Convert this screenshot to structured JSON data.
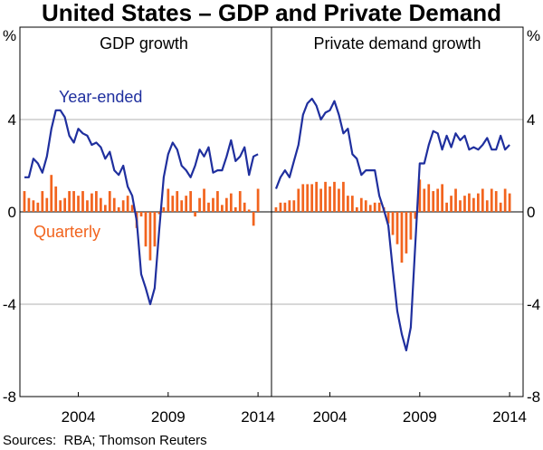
{
  "colors": {
    "year_ended": "#1f2f9e",
    "quarterly": "#f2641e",
    "grid": "#b0b0b0",
    "frame": "#000000"
  },
  "chart_data": {
    "title": "United States – GDP and Private Demand",
    "unit_label": "%",
    "y_ticks": [
      4,
      0,
      -4,
      -8
    ],
    "y_tick_labels": [
      "4",
      "0",
      "-4",
      "-8"
    ],
    "ylim": [
      -8,
      8
    ],
    "x_tick_labels": [
      "2004",
      "2009",
      "2014"
    ],
    "x_ticks": [
      2004,
      2009,
      2014
    ],
    "xlim": [
      2000.75,
      2014.75
    ],
    "source": "Sources:  RBA; Thomson Reuters",
    "panels": [
      {
        "title": "GDP growth",
        "series_labels": {
          "year_ended": "Year-ended",
          "quarterly": "Quarterly"
        },
        "series": [
          {
            "name": "Year-ended",
            "type": "line",
            "x": [
              2001.0,
              2001.25,
              2001.5,
              2001.75,
              2002.0,
              2002.25,
              2002.5,
              2002.75,
              2003.0,
              2003.25,
              2003.5,
              2003.75,
              2004.0,
              2004.25,
              2004.5,
              2004.75,
              2005.0,
              2005.25,
              2005.5,
              2005.75,
              2006.0,
              2006.25,
              2006.5,
              2006.75,
              2007.0,
              2007.25,
              2007.5,
              2007.75,
              2008.0,
              2008.25,
              2008.5,
              2008.75,
              2009.0,
              2009.25,
              2009.5,
              2009.75,
              2010.0,
              2010.25,
              2010.5,
              2010.75,
              2011.0,
              2011.25,
              2011.5,
              2011.75,
              2012.0,
              2012.25,
              2012.5,
              2012.75,
              2013.0,
              2013.25,
              2013.5,
              2013.75,
              2014.0
            ],
            "values": [
              1.5,
              1.5,
              2.3,
              2.1,
              1.7,
              2.4,
              3.6,
              4.4,
              4.4,
              4.1,
              3.3,
              3.0,
              3.6,
              3.4,
              3.3,
              2.9,
              3.0,
              2.8,
              2.3,
              2.6,
              1.8,
              1.6,
              2.0,
              1.1,
              0.7,
              -0.4,
              -2.7,
              -3.3,
              -4.0,
              -3.3,
              -0.8,
              1.5,
              2.5,
              3.0,
              2.7,
              2.0,
              1.8,
              1.5,
              2.0,
              2.7,
              2.4,
              2.8,
              1.7,
              1.8,
              1.8,
              2.4,
              3.1,
              2.2,
              2.4,
              2.8,
              1.6,
              2.4,
              2.5
            ]
          },
          {
            "name": "Quarterly",
            "type": "bar",
            "x": [
              2001.0,
              2001.25,
              2001.5,
              2001.75,
              2002.0,
              2002.25,
              2002.5,
              2002.75,
              2003.0,
              2003.25,
              2003.5,
              2003.75,
              2004.0,
              2004.25,
              2004.5,
              2004.75,
              2005.0,
              2005.25,
              2005.5,
              2005.75,
              2006.0,
              2006.25,
              2006.5,
              2006.75,
              2007.0,
              2007.25,
              2007.5,
              2007.75,
              2008.0,
              2008.25,
              2008.5,
              2008.75,
              2009.0,
              2009.25,
              2009.5,
              2009.75,
              2010.0,
              2010.25,
              2010.5,
              2010.75,
              2011.0,
              2011.25,
              2011.5,
              2011.75,
              2012.0,
              2012.25,
              2012.5,
              2012.75,
              2013.0,
              2013.25,
              2013.5,
              2013.75,
              2014.0
            ],
            "values": [
              0.9,
              0.6,
              0.5,
              0.4,
              0.9,
              0.6,
              1.6,
              1.1,
              0.5,
              0.6,
              0.9,
              0.9,
              0.7,
              0.9,
              0.5,
              0.8,
              0.9,
              0.6,
              0.3,
              0.9,
              0.6,
              0.2,
              0.5,
              0.7,
              0.3,
              -0.7,
              -0.2,
              -1.5,
              -2.1,
              -1.5,
              -0.1,
              0.2,
              1.0,
              0.7,
              0.9,
              0.5,
              0.7,
              0.9,
              -0.2,
              0.6,
              1.0,
              0.4,
              0.6,
              0.9,
              0.3,
              0.6,
              0.8,
              0.2,
              0.9,
              0.4,
              0.1,
              -0.6,
              1.0
            ]
          }
        ]
      },
      {
        "title": "Private demand growth",
        "series_labels": {},
        "series": [
          {
            "name": "Year-ended",
            "type": "line",
            "x": [
              2001.0,
              2001.25,
              2001.5,
              2001.75,
              2002.0,
              2002.25,
              2002.5,
              2002.75,
              2003.0,
              2003.25,
              2003.5,
              2003.75,
              2004.0,
              2004.25,
              2004.5,
              2004.75,
              2005.0,
              2005.25,
              2005.5,
              2005.75,
              2006.0,
              2006.25,
              2006.5,
              2006.75,
              2007.0,
              2007.25,
              2007.5,
              2007.75,
              2008.0,
              2008.25,
              2008.5,
              2008.75,
              2009.0,
              2009.25,
              2009.5,
              2009.75,
              2010.0,
              2010.25,
              2010.5,
              2010.75,
              2011.0,
              2011.25,
              2011.5,
              2011.75,
              2012.0,
              2012.25,
              2012.5,
              2012.75,
              2013.0,
              2013.25,
              2013.5,
              2013.75,
              2014.0
            ],
            "values": [
              1.0,
              1.5,
              1.8,
              1.5,
              2.2,
              2.9,
              4.2,
              4.7,
              4.9,
              4.6,
              4.0,
              4.3,
              4.4,
              4.8,
              4.2,
              3.4,
              3.6,
              2.5,
              2.3,
              1.6,
              1.8,
              1.8,
              1.8,
              0.7,
              0.1,
              -0.6,
              -2.5,
              -4.3,
              -5.3,
              -6.0,
              -5.0,
              -1.4,
              2.1,
              2.1,
              2.9,
              3.5,
              3.4,
              2.7,
              3.3,
              2.8,
              3.4,
              3.1,
              3.3,
              2.7,
              2.8,
              2.7,
              2.9,
              3.2,
              2.7,
              2.7,
              3.3,
              2.7,
              2.9
            ]
          },
          {
            "name": "Quarterly",
            "type": "bar",
            "x": [
              2001.0,
              2001.25,
              2001.5,
              2001.75,
              2002.0,
              2002.25,
              2002.5,
              2002.75,
              2003.0,
              2003.25,
              2003.5,
              2003.75,
              2004.0,
              2004.25,
              2004.5,
              2004.75,
              2005.0,
              2005.25,
              2005.5,
              2005.75,
              2006.0,
              2006.25,
              2006.5,
              2006.75,
              2007.0,
              2007.25,
              2007.5,
              2007.75,
              2008.0,
              2008.25,
              2008.5,
              2008.75,
              2009.0,
              2009.25,
              2009.5,
              2009.75,
              2010.0,
              2010.25,
              2010.5,
              2010.75,
              2011.0,
              2011.25,
              2011.5,
              2011.75,
              2012.0,
              2012.25,
              2012.5,
              2012.75,
              2013.0,
              2013.25,
              2013.5,
              2013.75,
              2014.0
            ],
            "values": [
              0.2,
              0.4,
              0.4,
              0.5,
              0.5,
              1.0,
              1.2,
              1.2,
              1.2,
              1.3,
              1.0,
              1.3,
              1.1,
              1.3,
              1.0,
              1.3,
              0.7,
              0.7,
              0.2,
              0.6,
              0.5,
              0.3,
              0.4,
              0.4,
              0.2,
              -0.5,
              -1.0,
              -1.4,
              -2.2,
              -1.8,
              -1.2,
              -0.3,
              1.4,
              1.0,
              1.2,
              0.9,
              1.0,
              1.2,
              0.4,
              0.7,
              1.0,
              0.5,
              0.7,
              0.8,
              0.6,
              0.8,
              1.0,
              0.5,
              1.0,
              0.9,
              0.4,
              1.0,
              0.8
            ]
          }
        ]
      }
    ]
  }
}
